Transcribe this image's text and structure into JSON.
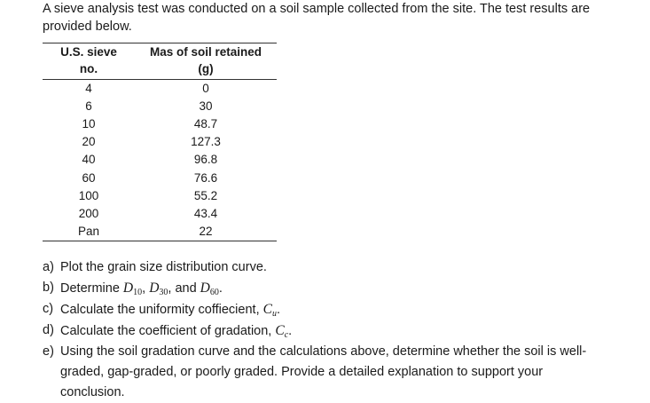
{
  "intro": {
    "line1": "A sieve analysis test was conducted on a soil sample collected from the site. The test results are",
    "line2": "provided below."
  },
  "table": {
    "headers": {
      "sieve_line1": "U.S. sieve",
      "sieve_line2": "no.",
      "mass_line1": "Mas of soil retained",
      "mass_line2": "(g)"
    },
    "rows": [
      {
        "sieve": "4",
        "mass": "0"
      },
      {
        "sieve": "6",
        "mass": "30"
      },
      {
        "sieve": "10",
        "mass": "48.7"
      },
      {
        "sieve": "20",
        "mass": "127.3"
      },
      {
        "sieve": "40",
        "mass": "96.8"
      },
      {
        "sieve": "60",
        "mass": "76.6"
      },
      {
        "sieve": "100",
        "mass": "55.2"
      },
      {
        "sieve": "200",
        "mass": "43.4"
      },
      {
        "sieve": "Pan",
        "mass": "22"
      }
    ]
  },
  "questions": {
    "a": {
      "marker": "a)",
      "text": "Plot the grain size distribution curve."
    },
    "b": {
      "marker": "b)",
      "prefix": "Determine ",
      "d": "D",
      "s1": "10",
      "sep1": ", ",
      "s2": "30",
      "sep2": ", and ",
      "s3": "60",
      "suffix": "."
    },
    "c": {
      "marker": "c)",
      "prefix": "Calculate the uniformity coffiecient, ",
      "sym": "C",
      "sub": "u",
      "suffix": "."
    },
    "d": {
      "marker": "d)",
      "prefix": "Calculate the coefficient of gradation, ",
      "sym": "C",
      "sub": "c",
      "suffix": "."
    },
    "e": {
      "marker": "e)",
      "line1": "Using the soil gradation curve and the calculations above, determine whether the soil is well-",
      "line2": "graded, gap-graded, or poorly graded. Provide a detailed explanation to support your",
      "line3": "conclusion."
    }
  }
}
